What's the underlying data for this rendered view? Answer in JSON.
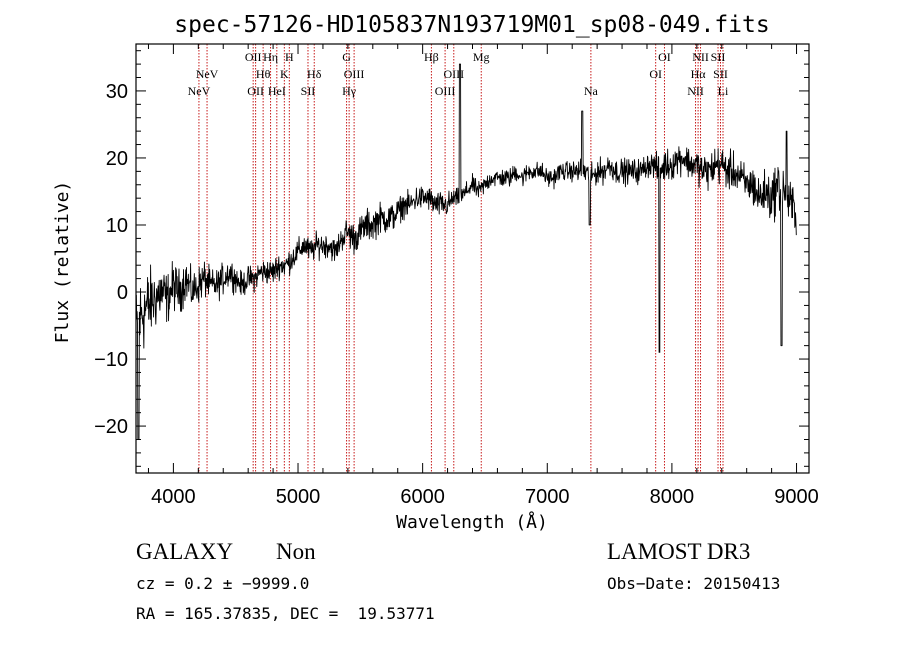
{
  "chart_data": {
    "type": "line",
    "title": "spec-57126-HD105837N193719M01_sp08-049.fits",
    "xlabel": "Wavelength (Å)",
    "ylabel": "Flux (relative)",
    "xlim": [
      3700,
      9100
    ],
    "ylim": [
      -27,
      37
    ],
    "xticks": [
      4000,
      5000,
      6000,
      7000,
      8000,
      9000
    ],
    "xtick_labels": [
      "4000",
      "5000",
      "6000",
      "7000",
      "8000",
      "9000"
    ],
    "yticks": [
      -20,
      -10,
      0,
      10,
      20,
      30
    ],
    "ytick_labels": [
      "−20",
      "−10",
      "0",
      "10",
      "20",
      "30"
    ],
    "series": [
      {
        "name": "spectrum",
        "x": [
          3700,
          3750,
          3800,
          3850,
          3900,
          3950,
          4000,
          4050,
          4100,
          4150,
          4200,
          4250,
          4300,
          4350,
          4400,
          4450,
          4500,
          4550,
          4600,
          4650,
          4700,
          4750,
          4800,
          4850,
          4900,
          4950,
          5000,
          5050,
          5100,
          5150,
          5200,
          5250,
          5300,
          5350,
          5400,
          5450,
          5500,
          5550,
          5600,
          5650,
          5700,
          5750,
          5800,
          5850,
          5900,
          5950,
          6000,
          6050,
          6100,
          6150,
          6200,
          6250,
          6300,
          6350,
          6400,
          6450,
          6500,
          6550,
          6600,
          6650,
          6700,
          6750,
          6800,
          6850,
          6900,
          6950,
          7000,
          7050,
          7100,
          7150,
          7200,
          7250,
          7300,
          7350,
          7400,
          7450,
          7500,
          7550,
          7600,
          7650,
          7700,
          7750,
          7800,
          7850,
          7900,
          7950,
          8000,
          8050,
          8100,
          8150,
          8200,
          8250,
          8300,
          8350,
          8400,
          8450,
          8500,
          8550,
          8600,
          8650,
          8700,
          8750,
          8800,
          8850,
          8900,
          8950,
          9000
        ],
        "y": [
          -6,
          -3,
          -2,
          -1,
          0,
          -1,
          1,
          0,
          2,
          0,
          1,
          2,
          1,
          1,
          2,
          3,
          2,
          1,
          2,
          2,
          3,
          3,
          3,
          4,
          4,
          5,
          6,
          7,
          6,
          7,
          7,
          7,
          6,
          8,
          9,
          8,
          9,
          10,
          10,
          11,
          11,
          11,
          12,
          13,
          13,
          14,
          14,
          14,
          13,
          13,
          13,
          14,
          14,
          15,
          16,
          15,
          16,
          17,
          17,
          17,
          17,
          18,
          17,
          18,
          18,
          18,
          17,
          17,
          18,
          18,
          18,
          18,
          18,
          17,
          18,
          18,
          19,
          18,
          18,
          18,
          18,
          18,
          19,
          19,
          18,
          19,
          19,
          20,
          20,
          19,
          19,
          18,
          18,
          19,
          19,
          18,
          18,
          17,
          16,
          16,
          14,
          15,
          14,
          16,
          15,
          13,
          12
        ],
        "noise_sigma": [
          7,
          7,
          6,
          5,
          5,
          4,
          4,
          3.5,
          3.5,
          3,
          3,
          3,
          2.5,
          2.5,
          2.5,
          2.5,
          2,
          2,
          2,
          2,
          2,
          2,
          2,
          2,
          2,
          2,
          2,
          2,
          2,
          2,
          2,
          2,
          2,
          2,
          2.5,
          2.5,
          2.5,
          2.5,
          2.5,
          2.5,
          2.5,
          2.5,
          2,
          2,
          2,
          2,
          2,
          2,
          2,
          2,
          2,
          1.5,
          1.5,
          1.5,
          1.5,
          1.5,
          1.5,
          1.5,
          1.5,
          1.5,
          1.5,
          1.5,
          1.5,
          1.5,
          1.5,
          1.5,
          1.5,
          1.5,
          1.5,
          1.5,
          1.5,
          2,
          2,
          2,
          2,
          2,
          2,
          2,
          2,
          2,
          2,
          2,
          2,
          2,
          2.5,
          2.5,
          2.5,
          2.5,
          2.5,
          2.5,
          2.5,
          3,
          3,
          3,
          3,
          3,
          3,
          3,
          3,
          3.5,
          3.5,
          3.5,
          4,
          4,
          4,
          4,
          4
        ]
      }
    ],
    "spikes": [
      {
        "x": 6300,
        "y": 34
      },
      {
        "x": 7280,
        "y": 27
      },
      {
        "x": 7900,
        "y": -9
      },
      {
        "x": 8880,
        "y": -8
      },
      {
        "x": 3720,
        "y": -22
      },
      {
        "x": 7340,
        "y": 10
      },
      {
        "x": 8920,
        "y": 24
      }
    ],
    "line_markers": [
      {
        "x": 4205,
        "label": "NeV",
        "row": 2
      },
      {
        "x": 4270,
        "label": "NeV",
        "row": 1
      },
      {
        "x": 4640,
        "label": "OII",
        "row": 0
      },
      {
        "x": 4660,
        "label": "OII",
        "row": 2
      },
      {
        "x": 4720,
        "label": "Hθ",
        "row": 1
      },
      {
        "x": 4780,
        "label": "Hη",
        "row": 0
      },
      {
        "x": 4830,
        "label": "HeI",
        "row": 2
      },
      {
        "x": 4890,
        "label": "K",
        "row": 1
      },
      {
        "x": 4930,
        "label": "H",
        "row": 0
      },
      {
        "x": 5080,
        "label": "SII",
        "row": 2
      },
      {
        "x": 5130,
        "label": "Hδ",
        "row": 1
      },
      {
        "x": 5390,
        "label": "G",
        "row": 0
      },
      {
        "x": 5410,
        "label": "Hγ",
        "row": 2
      },
      {
        "x": 5450,
        "label": "OIII",
        "row": 1
      },
      {
        "x": 6070,
        "label": "Hβ",
        "row": 0
      },
      {
        "x": 6180,
        "label": "OIII",
        "row": 2
      },
      {
        "x": 6250,
        "label": "OIII",
        "row": 1
      },
      {
        "x": 6470,
        "label": "Mg",
        "row": 0
      },
      {
        "x": 7350,
        "label": "Na",
        "row": 2
      },
      {
        "x": 7870,
        "label": "OI",
        "row": 1
      },
      {
        "x": 7940,
        "label": "OI",
        "row": 0
      },
      {
        "x": 8190,
        "label": "NII",
        "row": 2
      },
      {
        "x": 8210,
        "label": "Hα",
        "row": 1
      },
      {
        "x": 8230,
        "label": "NII",
        "row": 0
      },
      {
        "x": 8370,
        "label": "SII",
        "row": 0
      },
      {
        "x": 8390,
        "label": "SII",
        "row": 1
      },
      {
        "x": 8410,
        "label": "Li",
        "row": 2
      }
    ]
  },
  "info": {
    "class": "GALAXY",
    "subclass": "Non",
    "survey": "LAMOST DR3",
    "cz": "cz = 0.2 ± −9999.0",
    "obs_date": "Obs−Date: 20150413",
    "coords": "RA = 165.37835, DEC =  19.53771"
  },
  "colors": {
    "axis": "#000000",
    "spectrum": "#000000",
    "marker": "#c00000",
    "background": "#ffffff"
  }
}
